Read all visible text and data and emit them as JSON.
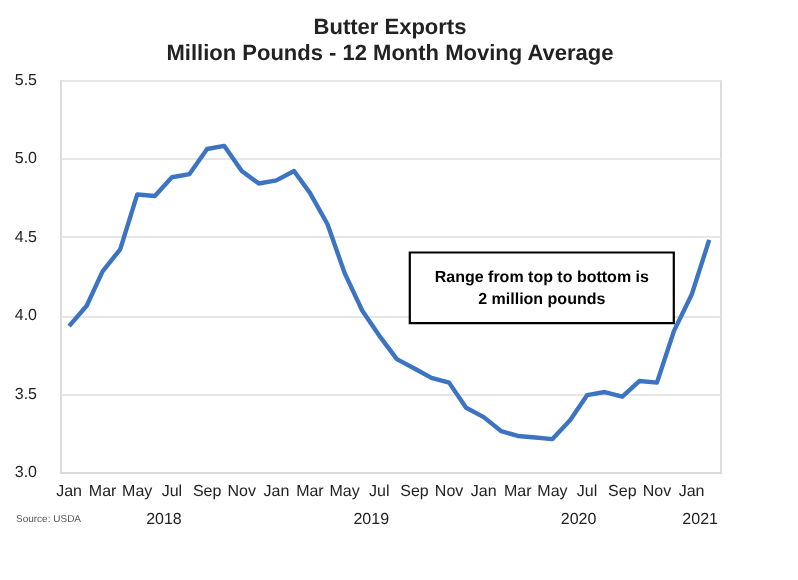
{
  "chart_data": {
    "type": "line",
    "title": [
      "Butter Exports",
      "Million Pounds - 12 Month Moving Average"
    ],
    "x": [
      "2018-01",
      "2018-02",
      "2018-03",
      "2018-04",
      "2018-05",
      "2018-06",
      "2018-07",
      "2018-08",
      "2018-09",
      "2018-10",
      "2018-11",
      "2018-12",
      "2019-01",
      "2019-02",
      "2019-03",
      "2019-04",
      "2019-05",
      "2019-06",
      "2019-07",
      "2019-08",
      "2019-09",
      "2019-10",
      "2019-11",
      "2019-12",
      "2020-01",
      "2020-02",
      "2020-03",
      "2020-04",
      "2020-05",
      "2020-06",
      "2020-07",
      "2020-08",
      "2020-09",
      "2020-10",
      "2020-11",
      "2020-12",
      "2021-01",
      "2021-02"
    ],
    "series": [
      {
        "color": "#3d74c2",
        "values": [
          3.93,
          4.06,
          4.28,
          4.42,
          4.77,
          4.76,
          4.88,
          4.9,
          5.06,
          5.08,
          4.92,
          4.84,
          4.86,
          4.92,
          4.78,
          4.58,
          4.27,
          4.03,
          3.87,
          3.72,
          3.66,
          3.6,
          3.57,
          3.41,
          3.35,
          3.26,
          3.23,
          3.22,
          3.21,
          3.33,
          3.49,
          3.51,
          3.48,
          3.58,
          3.57,
          3.9,
          4.13,
          4.48
        ]
      }
    ],
    "xlim": [
      "2017-12-16",
      "2021-02-20"
    ],
    "xticks": [
      {
        "value": "2018-01",
        "label": "Jan"
      },
      {
        "value": "2018-03",
        "label": "Mar"
      },
      {
        "value": "2018-05",
        "label": "May"
      },
      {
        "value": "2018-07",
        "label": "Jul"
      },
      {
        "value": "2018-09",
        "label": "Sep"
      },
      {
        "value": "2018-11",
        "label": "Nov"
      },
      {
        "value": "2019-01",
        "label": "Jan"
      },
      {
        "value": "2019-03",
        "label": "Mar"
      },
      {
        "value": "2019-05",
        "label": "May"
      },
      {
        "value": "2019-07",
        "label": "Jul"
      },
      {
        "value": "2019-09",
        "label": "Sep"
      },
      {
        "value": "2019-11",
        "label": "Nov"
      },
      {
        "value": "2020-01",
        "label": "Jan"
      },
      {
        "value": "2020-03",
        "label": "Mar"
      },
      {
        "value": "2020-05",
        "label": "May"
      },
      {
        "value": "2020-07",
        "label": "Jul"
      },
      {
        "value": "2020-09",
        "label": "Sep"
      },
      {
        "value": "2020-11",
        "label": "Nov"
      },
      {
        "value": "2021-01",
        "label": "Jan"
      }
    ],
    "ylim": [
      3.0,
      5.5
    ],
    "yticks": [
      {
        "value": 3.0,
        "label": "3.0"
      },
      {
        "value": 3.5,
        "label": "3.5"
      },
      {
        "value": 4.0,
        "label": "4.0"
      },
      {
        "value": 4.5,
        "label": "4.5"
      },
      {
        "value": 5.0,
        "label": "5.0"
      },
      {
        "value": 5.5,
        "label": "5.5"
      }
    ],
    "grid": "y",
    "marker": "none",
    "line_style": "solid",
    "annotations": [
      "Range from top to bottom is\n2 million pounds",
      "Source: USDA",
      "2018",
      "2019",
      "2020",
      "2021"
    ]
  }
}
